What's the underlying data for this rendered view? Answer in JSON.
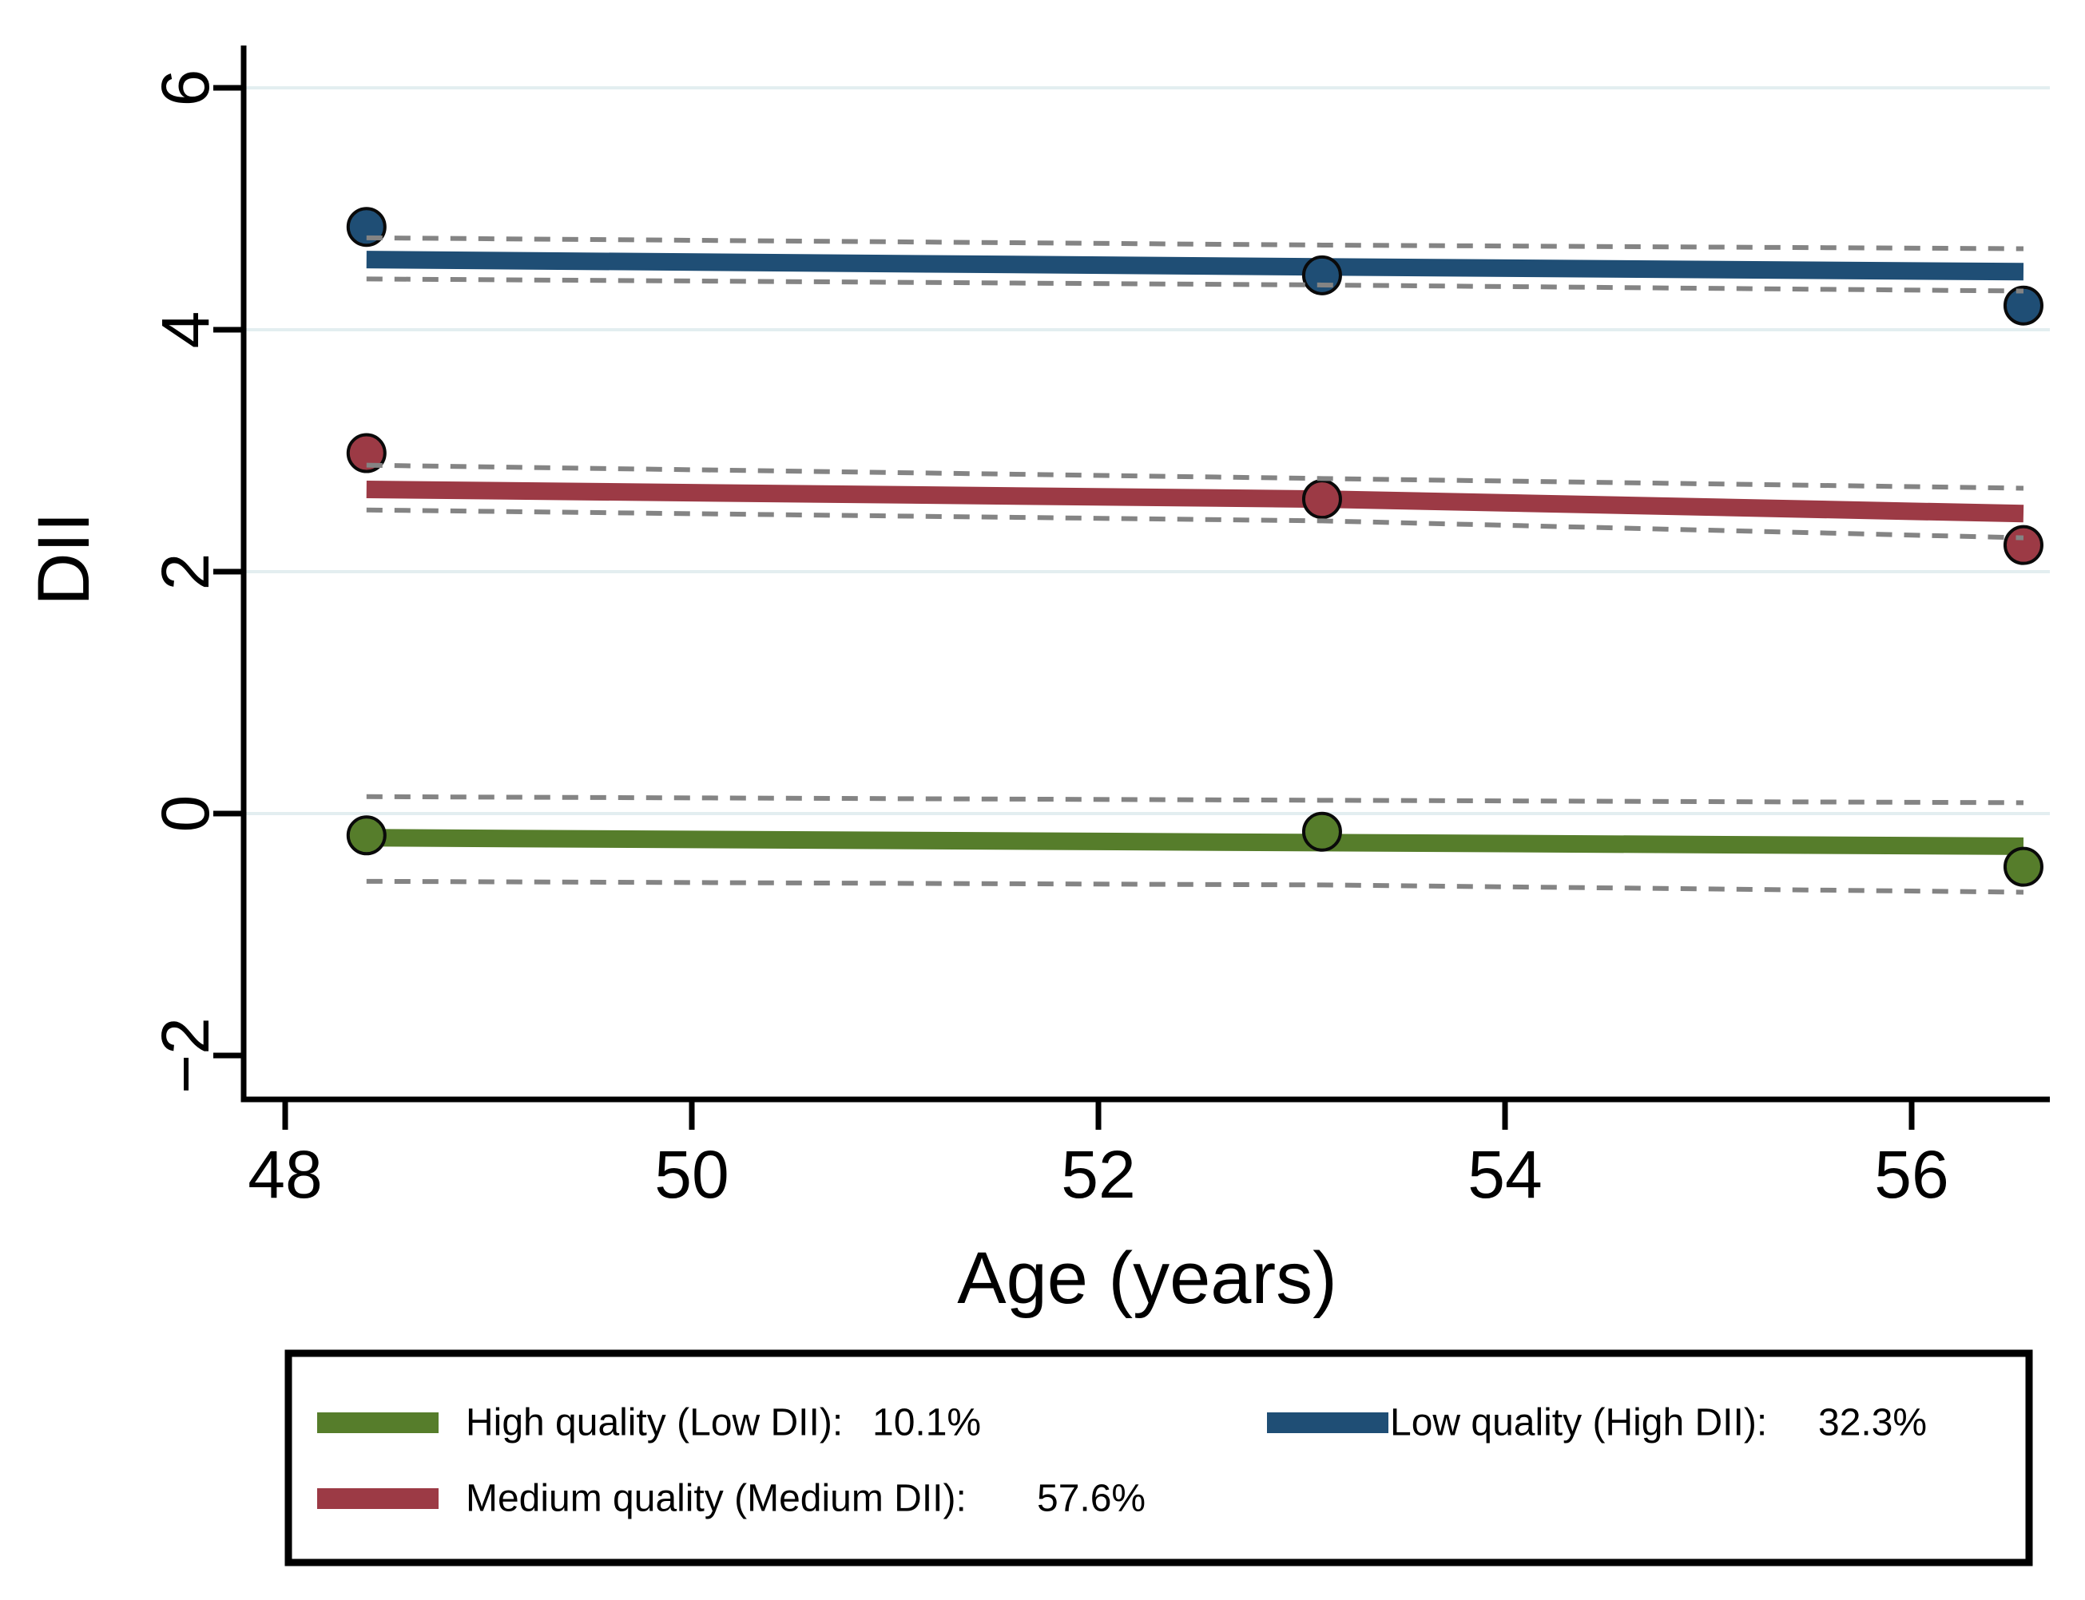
{
  "chart_data": {
    "type": "line",
    "title": "",
    "xlabel": "Age (years)",
    "ylabel": "DII",
    "x_tick_labels": [
      "48",
      "50",
      "52",
      "54",
      "56"
    ],
    "x_tick_values": [
      48,
      50,
      52,
      54,
      56
    ],
    "y_tick_labels": [
      "−2",
      "0",
      "2",
      "4",
      "6"
    ],
    "y_tick_values": [
      -2,
      0,
      2,
      4,
      6
    ],
    "grid_y_values": [
      0,
      2,
      4,
      6
    ],
    "xlim": [
      47.8,
      56.68
    ],
    "ylim": [
      -2.36,
      6.35
    ],
    "grid_on": true,
    "grid_color": "#e3eef0",
    "axis_color": "#000000",
    "ci_color": "#848484",
    "legend_position": "bottom",
    "series": [
      {
        "key": "high_quality",
        "name": "High quality (Low DII)",
        "share": "10.1%",
        "color": "#567d2b",
        "line": {
          "x": [
            48.4,
            53.1,
            56.55
          ],
          "y": [
            -0.2,
            -0.24,
            -0.27
          ]
        },
        "ci_upper": {
          "x": [
            48.4,
            53.1,
            56.55
          ],
          "y": [
            0.14,
            0.11,
            0.09
          ]
        },
        "ci_lower": {
          "x": [
            48.4,
            53.1,
            56.55
          ],
          "y": [
            -0.56,
            -0.59,
            -0.65
          ]
        },
        "points": {
          "x": [
            48.4,
            53.1,
            56.55
          ],
          "y": [
            -0.18,
            -0.15,
            -0.44
          ]
        }
      },
      {
        "key": "medium_quality",
        "name": "Medium quality (Medium DII)",
        "share": "57.6%",
        "color": "#9c3a45",
        "line": {
          "x": [
            48.4,
            53.1,
            56.55
          ],
          "y": [
            2.68,
            2.6,
            2.48
          ]
        },
        "ci_upper": {
          "x": [
            48.4,
            53.1,
            56.55
          ],
          "y": [
            2.88,
            2.77,
            2.69
          ]
        },
        "ci_lower": {
          "x": [
            48.4,
            53.1,
            56.55
          ],
          "y": [
            2.51,
            2.42,
            2.28
          ]
        },
        "points": {
          "x": [
            48.4,
            53.1,
            56.55
          ],
          "y": [
            2.98,
            2.6,
            2.22
          ]
        }
      },
      {
        "key": "low_quality",
        "name": "Low quality (High DII)",
        "share": "32.3%",
        "color": "#1f4e75",
        "line": {
          "x": [
            48.4,
            53.1,
            56.55
          ],
          "y": [
            4.58,
            4.52,
            4.48
          ]
        },
        "ci_upper": {
          "x": [
            48.4,
            53.1,
            56.55
          ],
          "y": [
            4.76,
            4.7,
            4.67
          ]
        },
        "ci_lower": {
          "x": [
            48.4,
            53.1,
            56.55
          ],
          "y": [
            4.42,
            4.37,
            4.32
          ]
        },
        "points": {
          "x": [
            48.4,
            53.1,
            56.55
          ],
          "y": [
            4.85,
            4.45,
            4.2
          ]
        }
      }
    ],
    "legend": {
      "items": [
        {
          "series_key": "high_quality",
          "label": "High quality (Low DII):",
          "value": "10.1%"
        },
        {
          "series_key": "medium_quality",
          "label": "Medium quality (Medium DII):",
          "value": "57.6%"
        },
        {
          "series_key": "low_quality",
          "label": "Low quality (High DII):",
          "value": "32.3%"
        }
      ]
    }
  }
}
